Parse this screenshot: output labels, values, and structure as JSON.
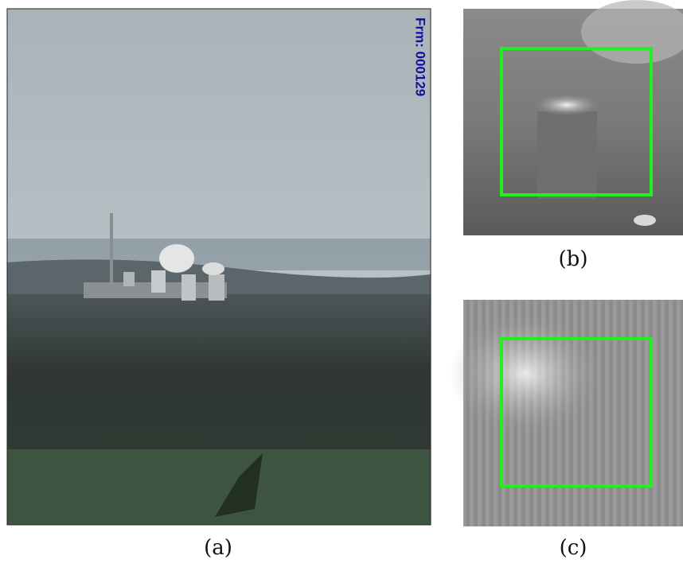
{
  "figure": {
    "panels": [
      {
        "label": "(a)",
        "overlay_text": "Frm: 000129"
      },
      {
        "label": "(b)"
      },
      {
        "label": "(c)"
      }
    ]
  }
}
